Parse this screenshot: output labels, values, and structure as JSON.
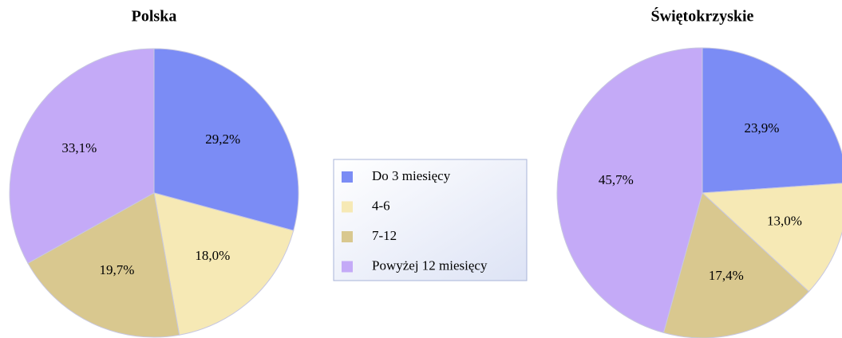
{
  "chart_data": [
    {
      "type": "pie",
      "title": "Polska",
      "categories": [
        "Do 3 miesięcy",
        "4-6",
        "7-12",
        "Powyżej 12 miesięcy"
      ],
      "colors": [
        "#7b8cf5",
        "#f6e9b5",
        "#d9c88f",
        "#c4aaf7"
      ],
      "values": [
        29.2,
        18.0,
        19.7,
        33.1
      ],
      "value_labels": [
        "29,2%",
        "18,0%",
        "19,7%",
        "33,1%"
      ]
    },
    {
      "type": "pie",
      "title": "Świętokrzyskie",
      "categories": [
        "Do 3 miesięcy",
        "4-6",
        "7-12",
        "Powyżej 12 miesięcy"
      ],
      "colors": [
        "#7b8cf5",
        "#f6e9b5",
        "#d9c88f",
        "#c4aaf7"
      ],
      "values": [
        23.9,
        13.0,
        17.4,
        45.7
      ],
      "value_labels": [
        "23,9%",
        "13,0%",
        "17,4%",
        "45,7%"
      ]
    }
  ]
}
